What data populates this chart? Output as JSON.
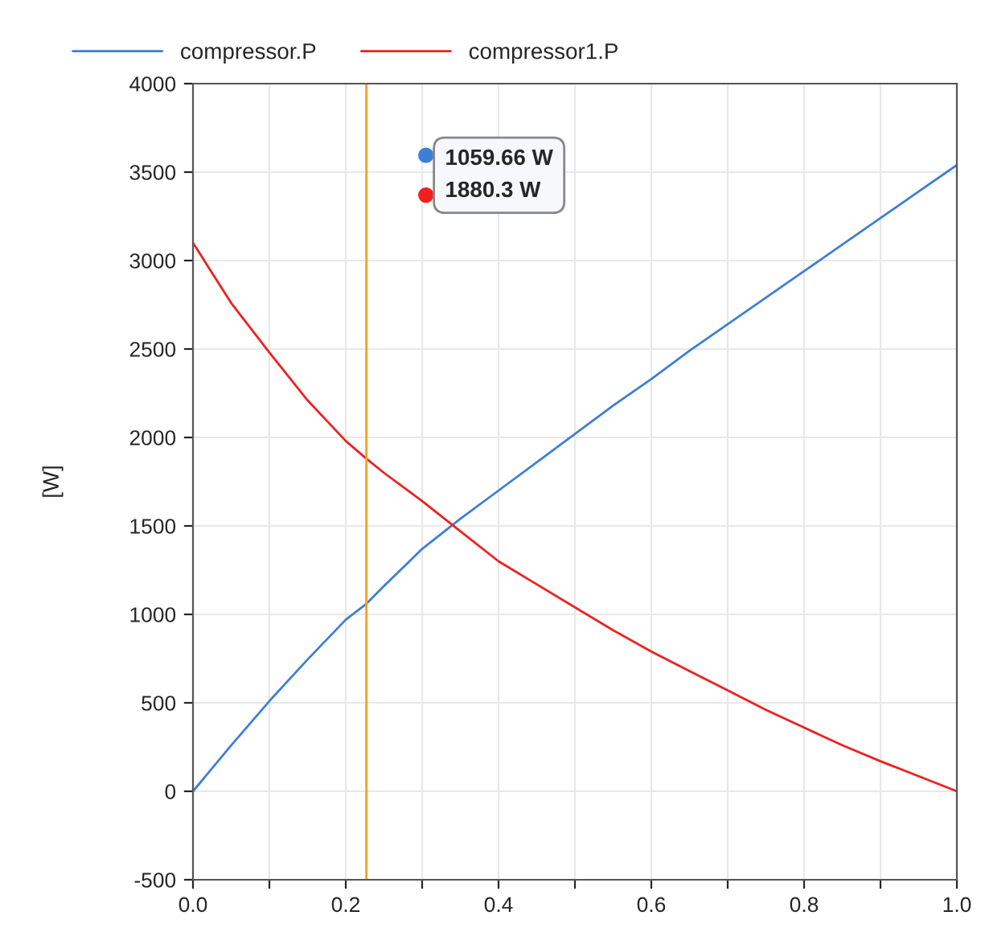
{
  "chart_data": {
    "type": "line",
    "ylabel": "[W]",
    "xlim": [
      0.0,
      1.0
    ],
    "xticks": [
      {
        "value": 0.0,
        "label": "0.0"
      },
      {
        "value": 0.1,
        "label": null
      },
      {
        "value": 0.2,
        "label": "0.2"
      },
      {
        "value": 0.3,
        "label": null
      },
      {
        "value": 0.4,
        "label": "0.4"
      },
      {
        "value": 0.5,
        "label": null
      },
      {
        "value": 0.6,
        "label": "0.6"
      },
      {
        "value": 0.7,
        "label": null
      },
      {
        "value": 0.8,
        "label": "0.8"
      },
      {
        "value": 0.9,
        "label": null
      },
      {
        "value": 1.0,
        "label": "1.0"
      }
    ],
    "ylim": [
      -500,
      4000
    ],
    "yticks": [
      -500,
      0,
      500,
      1000,
      1500,
      2000,
      2500,
      3000,
      3500,
      4000
    ],
    "x": [
      0,
      0.05,
      0.1,
      0.15,
      0.2,
      0.227,
      0.25,
      0.3,
      0.35,
      0.4,
      0.45,
      0.5,
      0.55,
      0.6,
      0.65,
      0.7,
      0.75,
      0.8,
      0.85,
      0.9,
      0.95,
      1.0
    ],
    "series": [
      {
        "name": "compressor.P",
        "color": "#3c7fd6",
        "values": [
          0,
          260,
          510,
          745,
          970,
          1060,
          1160,
          1370,
          1540,
          1700,
          1860,
          2020,
          2180,
          2330,
          2490,
          2640,
          2790,
          2940,
          3090,
          3240,
          3390,
          3540
        ]
      },
      {
        "name": "compressor1.P",
        "color": "#f02020",
        "values": [
          3100,
          2760,
          2480,
          2210,
          1980,
          1880,
          1800,
          1640,
          1470,
          1300,
          1170,
          1040,
          910,
          790,
          680,
          570,
          460,
          360,
          260,
          170,
          85,
          0
        ]
      }
    ],
    "ref_lines": [
      {
        "axis": "x",
        "value": 0.227,
        "color": "#f5a020"
      }
    ],
    "annotations": [
      "1059.66 W",
      "1880.3 W"
    ],
    "grid": true,
    "legend": "top",
    "line_style": "solid",
    "marker": "none"
  }
}
